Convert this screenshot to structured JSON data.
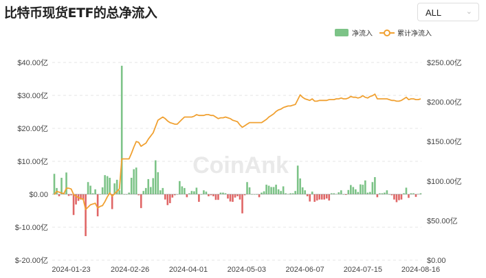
{
  "header": {
    "title": "比特币现货ETF的总净流入",
    "range_select": "ALL",
    "chevron_icon": "chevron-down-icon"
  },
  "watermark": "CoinAnk",
  "chart_data": {
    "type": "bar+line",
    "title": "比特币现货ETF的总净流入",
    "legend": {
      "placement": "top-right",
      "items": [
        "净流入",
        "累计净流入"
      ]
    },
    "grid": true,
    "colors": {
      "positive": "#7cc387",
      "negative": "#e06666",
      "line": "#f0a030",
      "grid": "#e6e6e6"
    },
    "x_ticks": [
      "2024-01-23",
      "2024-02-26",
      "2024-04-01",
      "2024-05-03",
      "2024-06-07",
      "2024-07-15",
      "2024-08-16"
    ],
    "y_left": {
      "ylim": [
        -20,
        40
      ],
      "ticks": [
        "$40.00亿",
        "$30.00亿",
        "$20.00亿",
        "$10.00亿",
        "$0.00",
        "$-10.00亿",
        "$-20.00亿"
      ]
    },
    "y_right": {
      "ylim": [
        0,
        250
      ],
      "ticks": [
        "$250.00亿",
        "$200.00亿",
        "$150.00亿",
        "$100.00亿",
        "$50.00亿",
        "$0.00"
      ]
    },
    "series": [
      {
        "name": "净流入",
        "type": "bar",
        "axis": "left",
        "values": [
          6.2,
          1.9,
          -0.6,
          5.0,
          0.5,
          6.6,
          -0.5,
          -0.3,
          -6.3,
          -3.1,
          -2.0,
          -1.6,
          -1.7,
          -12.7,
          3.7,
          2.6,
          0.3,
          1.5,
          -6.7,
          0,
          2.1,
          5.8,
          5.5,
          5.0,
          -4.5,
          3.3,
          4.4,
          1.2,
          39.0,
          0,
          0,
          0.5,
          5.0,
          7.6,
          8.1,
          -0.3,
          -4.2,
          1.0,
          1.9,
          4.6,
          2.2,
          4.9,
          10.3,
          6.7,
          1.2,
          1.9,
          -1.6,
          -3.3,
          -2.7,
          -1.0,
          -0.3,
          0,
          4.0,
          2.4,
          1.9,
          -0.9,
          0.3,
          1.0,
          0.9,
          2.0,
          -2.3,
          0,
          1.2,
          0.8,
          -0.6,
          -0.3,
          -0.6,
          -1.7,
          -1.7,
          0.5,
          0.5,
          0.3,
          -1.3,
          -2.2,
          -2.3,
          -1.0,
          -0.6,
          -1.6,
          -5.8,
          -0.3,
          3.7,
          2.1,
          0,
          0,
          0,
          -0.9,
          0.5,
          0.9,
          2.9,
          2.6,
          2.2,
          2.2,
          2.9,
          1.5,
          1.0,
          2.4,
          0.3,
          0.1,
          0.3,
          0.3,
          1.0,
          8.7,
          4.8,
          2.1,
          1.2,
          -0.6,
          -2.2,
          0.8,
          -2.3,
          -1.9,
          -1.6,
          -1.6,
          -1.6,
          -1.3,
          -1.9,
          0.3,
          0.3,
          0.1,
          0.6,
          1.2,
          0,
          -0.2,
          1.3,
          2.8,
          2.2,
          1.5,
          0.7,
          3.0,
          2.9,
          4.2,
          0.5,
          0.7,
          3.7,
          5.2,
          -0.9,
          0.3,
          0.3,
          0.5,
          1.2,
          0,
          -0.3,
          -1.6,
          -2.4,
          -1.8,
          -1.6,
          0.3,
          2.0,
          -1.1,
          0.3,
          0.3,
          -0.8,
          0.1,
          0.3
        ]
      },
      {
        "name": "累计净流入",
        "type": "line",
        "axis": "right",
        "values": [
          83,
          87,
          86,
          85,
          84,
          91,
          91,
          90,
          83,
          81,
          79,
          78,
          77,
          64,
          67,
          70,
          71,
          72,
          66,
          68,
          69,
          74,
          80,
          85,
          81,
          84,
          87,
          90,
          128,
          128,
          128,
          128,
          135,
          143,
          150,
          149,
          144,
          146,
          148,
          153,
          157,
          161,
          169,
          177,
          179,
          181,
          179,
          176,
          174,
          173,
          172,
          172,
          175,
          178,
          181,
          181,
          181,
          181,
          182,
          184,
          183,
          183,
          183,
          184,
          184,
          183,
          183,
          181,
          179,
          180,
          180,
          181,
          180,
          179,
          177,
          176,
          175,
          171,
          168,
          170,
          172,
          174,
          174,
          174,
          174,
          174,
          174,
          176,
          178,
          181,
          183,
          185,
          188,
          190,
          191,
          193,
          194,
          195,
          195,
          196,
          197,
          203,
          209,
          206,
          204,
          203,
          202,
          204,
          201,
          201,
          202,
          202,
          202,
          202,
          203,
          203,
          203,
          204,
          204,
          205,
          204,
          204,
          205,
          207,
          206,
          206,
          205,
          206,
          208,
          206,
          205,
          207,
          208,
          210,
          204,
          204,
          204,
          204,
          204,
          203,
          202,
          202,
          201,
          201,
          202,
          204,
          206,
          203,
          204,
          204,
          203,
          203,
          204
        ]
      }
    ]
  }
}
